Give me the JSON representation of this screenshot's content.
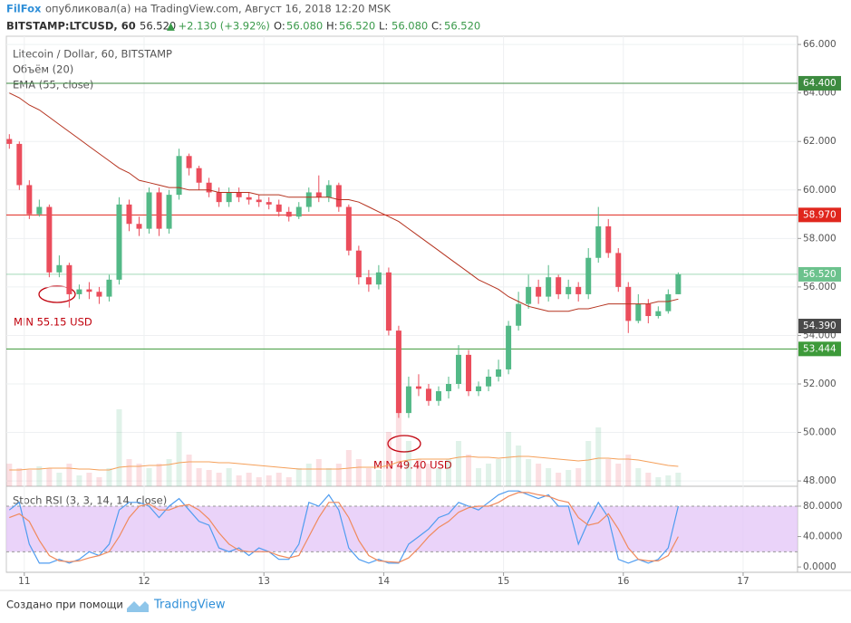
{
  "header": {
    "author": "FilFox",
    "text": "опубликовал(а) на TradingView.com, Август 16, 2018 12:20 MSK",
    "symbol": "BITSTAMP:LTCUSD, 60",
    "last": "56.520",
    "change": "▲ +2.130 (+3.92%)",
    "ohlc": [
      {
        "label": "O:",
        "value": "56.080"
      },
      {
        "label": "H:",
        "value": "56.520"
      },
      {
        "label": "L:",
        "value": "56.080"
      },
      {
        "label": "C:",
        "value": "56.520"
      }
    ]
  },
  "chart_data": {
    "type": "candlestick",
    "title": "Litecoin / Dollar, 60, BITSTAMP",
    "up_color": "#53b987",
    "down_color": "#eb4d5c",
    "grid": true,
    "x": [
      -3,
      -1,
      1,
      3,
      5,
      7,
      9,
      11,
      13,
      15,
      17,
      19,
      21,
      23,
      25,
      27,
      29,
      31,
      33,
      35,
      37,
      39,
      41,
      43,
      45,
      47,
      49,
      51,
      53,
      55,
      57,
      59,
      61,
      63,
      65,
      67,
      69,
      71,
      73,
      75,
      77,
      79,
      81,
      83,
      85,
      87,
      89,
      91,
      93,
      95,
      97,
      99,
      101,
      103,
      105,
      107,
      109,
      111,
      113,
      115,
      117,
      119,
      121,
      123,
      125,
      127,
      129,
      131
    ],
    "xlim": [
      -3.6,
      154.9
    ],
    "xticks": [
      {
        "value": 0,
        "label": "11"
      },
      {
        "value": 24,
        "label": "12"
      },
      {
        "value": 48,
        "label": "13"
      },
      {
        "value": 72,
        "label": "14"
      },
      {
        "value": 96,
        "label": "15"
      },
      {
        "value": 120,
        "label": "16"
      },
      {
        "value": 144,
        "label": "17"
      }
    ],
    "ylim": [
      47.78,
      66.34
    ],
    "yticks": [
      {
        "value": 48,
        "label": "48.000"
      },
      {
        "value": 50,
        "label": "50.000"
      },
      {
        "value": 52,
        "label": "52.000"
      },
      {
        "value": 54,
        "label": "54.000"
      },
      {
        "value": 56,
        "label": "56.000"
      },
      {
        "value": 58,
        "label": "58.000"
      },
      {
        "value": 60,
        "label": "60.000"
      },
      {
        "value": 62,
        "label": "62.000"
      },
      {
        "value": 64,
        "label": "64.000"
      },
      {
        "value": 66,
        "label": "66.000"
      }
    ],
    "open": [
      62.1,
      61.9,
      60.2,
      59.0,
      59.3,
      56.6,
      56.9,
      55.7,
      55.9,
      55.8,
      55.6,
      56.3,
      59.4,
      58.6,
      58.4,
      59.9,
      58.4,
      59.8,
      61.4,
      60.9,
      60.3,
      59.9,
      59.5,
      59.9,
      59.7,
      59.6,
      59.5,
      59.4,
      59.1,
      58.9,
      59.3,
      59.9,
      59.7,
      60.2,
      59.3,
      57.5,
      56.4,
      56.1,
      56.6,
      54.2,
      50.8,
      51.9,
      51.8,
      51.3,
      51.7,
      52.0,
      53.2,
      51.7,
      51.9,
      52.3,
      52.6,
      54.4,
      55.3,
      56.0,
      55.6,
      56.4,
      55.7,
      56.0,
      55.7,
      57.2,
      58.5,
      57.4,
      56.0,
      54.6,
      55.3,
      54.8,
      55.0,
      55.7
    ],
    "high": [
      62.3,
      62.0,
      60.4,
      59.6,
      59.4,
      57.3,
      57.0,
      56.1,
      56.2,
      56.0,
      56.5,
      59.7,
      59.6,
      58.9,
      60.1,
      60.1,
      60.0,
      61.7,
      61.5,
      61.0,
      60.5,
      60.1,
      60.1,
      60.1,
      59.9,
      59.8,
      59.7,
      59.6,
      59.3,
      59.5,
      60.1,
      60.6,
      60.4,
      60.3,
      59.4,
      57.7,
      56.7,
      56.9,
      56.8,
      54.4,
      52.3,
      52.4,
      52.0,
      51.9,
      52.3,
      53.6,
      53.4,
      52.1,
      52.6,
      53.0,
      54.6,
      55.8,
      56.5,
      56.3,
      56.9,
      56.5,
      56.3,
      56.2,
      57.6,
      59.3,
      58.8,
      57.6,
      56.2,
      55.7,
      55.5,
      55.2,
      55.9,
      56.6
    ],
    "low": [
      61.7,
      60.0,
      58.8,
      58.9,
      56.4,
      56.4,
      55.15,
      55.5,
      55.5,
      55.3,
      55.4,
      56.1,
      58.3,
      58.1,
      58.2,
      58.1,
      58.2,
      59.6,
      60.6,
      60.0,
      59.7,
      59.3,
      59.3,
      59.5,
      59.4,
      59.3,
      59.2,
      58.9,
      58.7,
      58.8,
      59.1,
      59.5,
      59.5,
      59.1,
      57.3,
      56.1,
      55.8,
      55.9,
      54.0,
      50.6,
      50.6,
      51.5,
      51.1,
      51.1,
      51.4,
      51.8,
      51.5,
      51.5,
      51.7,
      52.1,
      52.4,
      54.2,
      55.1,
      55.3,
      55.4,
      55.5,
      55.5,
      55.4,
      55.5,
      57.0,
      57.2,
      55.8,
      54.1,
      54.5,
      54.5,
      54.7,
      54.9,
      55.7
    ],
    "close": [
      61.9,
      60.2,
      59.0,
      59.3,
      56.6,
      56.9,
      55.7,
      55.9,
      55.8,
      55.6,
      56.3,
      59.4,
      58.6,
      58.4,
      59.9,
      58.4,
      59.8,
      61.4,
      60.9,
      60.3,
      59.9,
      59.5,
      59.9,
      59.7,
      59.6,
      59.5,
      59.4,
      59.1,
      58.9,
      59.3,
      59.9,
      59.7,
      60.2,
      59.3,
      57.5,
      56.4,
      56.1,
      56.6,
      54.2,
      50.8,
      51.9,
      51.8,
      51.3,
      51.7,
      52.0,
      53.2,
      51.7,
      51.9,
      52.3,
      52.6,
      54.4,
      55.3,
      56.0,
      55.6,
      56.4,
      55.7,
      56.0,
      55.7,
      57.2,
      58.5,
      57.4,
      56.0,
      54.6,
      55.3,
      54.8,
      55.0,
      55.7,
      56.52
    ],
    "volume": {
      "name": "Объём (20)",
      "lim": [
        0,
        100
      ],
      "ma_color": "#f5a05a",
      "values": [
        25,
        20,
        18,
        22,
        20,
        15,
        25,
        12,
        15,
        10,
        20,
        85,
        30,
        25,
        20,
        25,
        30,
        60,
        35,
        20,
        18,
        15,
        20,
        12,
        15,
        10,
        12,
        15,
        10,
        20,
        25,
        30,
        20,
        25,
        40,
        30,
        20,
        18,
        60,
        85,
        50,
        30,
        25,
        20,
        30,
        50,
        35,
        20,
        25,
        30,
        60,
        45,
        30,
        25,
        20,
        15,
        18,
        20,
        50,
        65,
        30,
        25,
        35,
        20,
        15,
        10,
        12,
        15
      ],
      "ma": [
        18,
        18,
        19,
        19,
        20,
        20,
        20,
        19,
        19,
        18,
        18,
        21,
        22,
        22,
        23,
        23,
        24,
        26,
        27,
        27,
        27,
        26,
        26,
        25,
        24,
        23,
        22,
        21,
        20,
        19,
        19,
        19,
        19,
        19,
        20,
        21,
        21,
        21,
        23,
        27,
        29,
        30,
        30,
        30,
        30,
        32,
        33,
        32,
        32,
        31,
        32,
        33,
        33,
        32,
        31,
        30,
        29,
        28,
        29,
        31,
        31,
        30,
        30,
        29,
        27,
        25,
        23,
        22
      ]
    },
    "ema": {
      "name": "EMA (55, close)",
      "color": "#b5331f",
      "values": [
        64.0,
        63.8,
        63.5,
        63.3,
        63.0,
        62.7,
        62.4,
        62.1,
        61.8,
        61.5,
        61.2,
        60.9,
        60.7,
        60.4,
        60.3,
        60.2,
        60.1,
        60.1,
        60.0,
        60.0,
        60.0,
        59.9,
        59.9,
        59.9,
        59.9,
        59.8,
        59.8,
        59.8,
        59.7,
        59.7,
        59.7,
        59.7,
        59.7,
        59.6,
        59.6,
        59.5,
        59.3,
        59.1,
        58.9,
        58.7,
        58.4,
        58.1,
        57.8,
        57.5,
        57.2,
        56.9,
        56.6,
        56.3,
        56.1,
        55.9,
        55.6,
        55.4,
        55.2,
        55.1,
        55.0,
        55.0,
        55.0,
        55.1,
        55.1,
        55.2,
        55.3,
        55.3,
        55.3,
        55.3,
        55.3,
        55.4,
        55.4,
        55.5
      ]
    },
    "levels": [
      {
        "value": 64.4,
        "label": "64.400",
        "color": "#3d8b40",
        "line": true
      },
      {
        "value": 58.97,
        "label": "58.970",
        "color": "#e0261d",
        "line": true
      },
      {
        "value": 56.52,
        "label": "56.520",
        "color": "#6cc28d",
        "line": true
      },
      {
        "value": 54.39,
        "label": "54.390",
        "color": "#4a4a4a",
        "line": false
      },
      {
        "value": 53.444,
        "label": "53.444",
        "color": "#3d9a3a",
        "line": true
      }
    ],
    "annotations": [
      {
        "text": "MIN 55.15 USD",
        "color": "#c0000c"
      },
      {
        "text": "MIN 49.40 USD",
        "color": "#c0000c"
      }
    ],
    "rsi": {
      "name": "Stoch RSI (3, 3, 14, 14, close)",
      "ylim": [
        -7,
        105
      ],
      "band": [
        20,
        80
      ],
      "band_color": "#e3c4f7",
      "yticks": [
        {
          "value": 0,
          "label": "0.0000"
        },
        {
          "value": 40,
          "label": "40.0000"
        },
        {
          "value": 80,
          "label": "80.0000"
        }
      ],
      "series": [
        {
          "color": "#4f9cf0",
          "values": [
            75,
            85,
            30,
            5,
            5,
            10,
            5,
            10,
            20,
            15,
            30,
            75,
            85,
            85,
            80,
            65,
            80,
            90,
            75,
            60,
            55,
            25,
            20,
            25,
            15,
            25,
            20,
            10,
            10,
            30,
            85,
            80,
            95,
            75,
            25,
            10,
            5,
            10,
            5,
            5,
            30,
            40,
            50,
            65,
            70,
            85,
            80,
            75,
            85,
            95,
            100,
            100,
            95,
            90,
            95,
            80,
            80,
            30,
            60,
            85,
            65,
            10,
            5,
            10,
            5,
            10,
            25,
            80
          ]
        },
        {
          "color": "#f08a5d",
          "values": [
            65,
            70,
            60,
            35,
            15,
            8,
            7,
            8,
            12,
            15,
            20,
            40,
            65,
            80,
            83,
            75,
            75,
            80,
            82,
            75,
            63,
            45,
            30,
            22,
            20,
            20,
            20,
            15,
            12,
            15,
            40,
            65,
            85,
            85,
            65,
            35,
            15,
            8,
            7,
            6,
            12,
            25,
            40,
            52,
            60,
            72,
            78,
            80,
            80,
            85,
            93,
            98,
            98,
            95,
            93,
            88,
            85,
            65,
            55,
            58,
            70,
            50,
            25,
            10,
            8,
            8,
            15,
            40
          ]
        }
      ]
    }
  },
  "footer": {
    "text": "Создано при помощи",
    "brand": "TradingView"
  }
}
